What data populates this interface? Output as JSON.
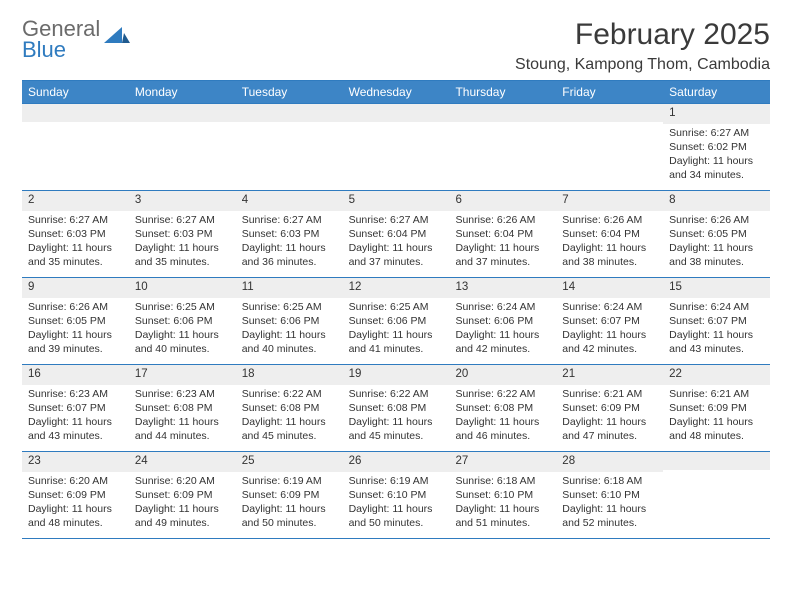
{
  "logo": {
    "textTop": "General",
    "textBottom": "Blue"
  },
  "title": "February 2025",
  "location": "Stoung, Kampong Thom, Cambodia",
  "colors": {
    "headerBar": "#3d85c6",
    "borderLine": "#2f7bbf",
    "dayStrip": "#eeeeee",
    "text": "#333333",
    "logoGray": "#6b6b6b",
    "logoBlue": "#2f7bbf",
    "background": "#ffffff"
  },
  "weekdays": [
    "Sunday",
    "Monday",
    "Tuesday",
    "Wednesday",
    "Thursday",
    "Friday",
    "Saturday"
  ],
  "weeks": [
    [
      {
        "n": "",
        "sunrise": "",
        "sunset": "",
        "daylight": ""
      },
      {
        "n": "",
        "sunrise": "",
        "sunset": "",
        "daylight": ""
      },
      {
        "n": "",
        "sunrise": "",
        "sunset": "",
        "daylight": ""
      },
      {
        "n": "",
        "sunrise": "",
        "sunset": "",
        "daylight": ""
      },
      {
        "n": "",
        "sunrise": "",
        "sunset": "",
        "daylight": ""
      },
      {
        "n": "",
        "sunrise": "",
        "sunset": "",
        "daylight": ""
      },
      {
        "n": "1",
        "sunrise": "Sunrise: 6:27 AM",
        "sunset": "Sunset: 6:02 PM",
        "daylight": "Daylight: 11 hours and 34 minutes."
      }
    ],
    [
      {
        "n": "2",
        "sunrise": "Sunrise: 6:27 AM",
        "sunset": "Sunset: 6:03 PM",
        "daylight": "Daylight: 11 hours and 35 minutes."
      },
      {
        "n": "3",
        "sunrise": "Sunrise: 6:27 AM",
        "sunset": "Sunset: 6:03 PM",
        "daylight": "Daylight: 11 hours and 35 minutes."
      },
      {
        "n": "4",
        "sunrise": "Sunrise: 6:27 AM",
        "sunset": "Sunset: 6:03 PM",
        "daylight": "Daylight: 11 hours and 36 minutes."
      },
      {
        "n": "5",
        "sunrise": "Sunrise: 6:27 AM",
        "sunset": "Sunset: 6:04 PM",
        "daylight": "Daylight: 11 hours and 37 minutes."
      },
      {
        "n": "6",
        "sunrise": "Sunrise: 6:26 AM",
        "sunset": "Sunset: 6:04 PM",
        "daylight": "Daylight: 11 hours and 37 minutes."
      },
      {
        "n": "7",
        "sunrise": "Sunrise: 6:26 AM",
        "sunset": "Sunset: 6:04 PM",
        "daylight": "Daylight: 11 hours and 38 minutes."
      },
      {
        "n": "8",
        "sunrise": "Sunrise: 6:26 AM",
        "sunset": "Sunset: 6:05 PM",
        "daylight": "Daylight: 11 hours and 38 minutes."
      }
    ],
    [
      {
        "n": "9",
        "sunrise": "Sunrise: 6:26 AM",
        "sunset": "Sunset: 6:05 PM",
        "daylight": "Daylight: 11 hours and 39 minutes."
      },
      {
        "n": "10",
        "sunrise": "Sunrise: 6:25 AM",
        "sunset": "Sunset: 6:06 PM",
        "daylight": "Daylight: 11 hours and 40 minutes."
      },
      {
        "n": "11",
        "sunrise": "Sunrise: 6:25 AM",
        "sunset": "Sunset: 6:06 PM",
        "daylight": "Daylight: 11 hours and 40 minutes."
      },
      {
        "n": "12",
        "sunrise": "Sunrise: 6:25 AM",
        "sunset": "Sunset: 6:06 PM",
        "daylight": "Daylight: 11 hours and 41 minutes."
      },
      {
        "n": "13",
        "sunrise": "Sunrise: 6:24 AM",
        "sunset": "Sunset: 6:06 PM",
        "daylight": "Daylight: 11 hours and 42 minutes."
      },
      {
        "n": "14",
        "sunrise": "Sunrise: 6:24 AM",
        "sunset": "Sunset: 6:07 PM",
        "daylight": "Daylight: 11 hours and 42 minutes."
      },
      {
        "n": "15",
        "sunrise": "Sunrise: 6:24 AM",
        "sunset": "Sunset: 6:07 PM",
        "daylight": "Daylight: 11 hours and 43 minutes."
      }
    ],
    [
      {
        "n": "16",
        "sunrise": "Sunrise: 6:23 AM",
        "sunset": "Sunset: 6:07 PM",
        "daylight": "Daylight: 11 hours and 43 minutes."
      },
      {
        "n": "17",
        "sunrise": "Sunrise: 6:23 AM",
        "sunset": "Sunset: 6:08 PM",
        "daylight": "Daylight: 11 hours and 44 minutes."
      },
      {
        "n": "18",
        "sunrise": "Sunrise: 6:22 AM",
        "sunset": "Sunset: 6:08 PM",
        "daylight": "Daylight: 11 hours and 45 minutes."
      },
      {
        "n": "19",
        "sunrise": "Sunrise: 6:22 AM",
        "sunset": "Sunset: 6:08 PM",
        "daylight": "Daylight: 11 hours and 45 minutes."
      },
      {
        "n": "20",
        "sunrise": "Sunrise: 6:22 AM",
        "sunset": "Sunset: 6:08 PM",
        "daylight": "Daylight: 11 hours and 46 minutes."
      },
      {
        "n": "21",
        "sunrise": "Sunrise: 6:21 AM",
        "sunset": "Sunset: 6:09 PM",
        "daylight": "Daylight: 11 hours and 47 minutes."
      },
      {
        "n": "22",
        "sunrise": "Sunrise: 6:21 AM",
        "sunset": "Sunset: 6:09 PM",
        "daylight": "Daylight: 11 hours and 48 minutes."
      }
    ],
    [
      {
        "n": "23",
        "sunrise": "Sunrise: 6:20 AM",
        "sunset": "Sunset: 6:09 PM",
        "daylight": "Daylight: 11 hours and 48 minutes."
      },
      {
        "n": "24",
        "sunrise": "Sunrise: 6:20 AM",
        "sunset": "Sunset: 6:09 PM",
        "daylight": "Daylight: 11 hours and 49 minutes."
      },
      {
        "n": "25",
        "sunrise": "Sunrise: 6:19 AM",
        "sunset": "Sunset: 6:09 PM",
        "daylight": "Daylight: 11 hours and 50 minutes."
      },
      {
        "n": "26",
        "sunrise": "Sunrise: 6:19 AM",
        "sunset": "Sunset: 6:10 PM",
        "daylight": "Daylight: 11 hours and 50 minutes."
      },
      {
        "n": "27",
        "sunrise": "Sunrise: 6:18 AM",
        "sunset": "Sunset: 6:10 PM",
        "daylight": "Daylight: 11 hours and 51 minutes."
      },
      {
        "n": "28",
        "sunrise": "Sunrise: 6:18 AM",
        "sunset": "Sunset: 6:10 PM",
        "daylight": "Daylight: 11 hours and 52 minutes."
      },
      {
        "n": "",
        "sunrise": "",
        "sunset": "",
        "daylight": ""
      }
    ]
  ]
}
